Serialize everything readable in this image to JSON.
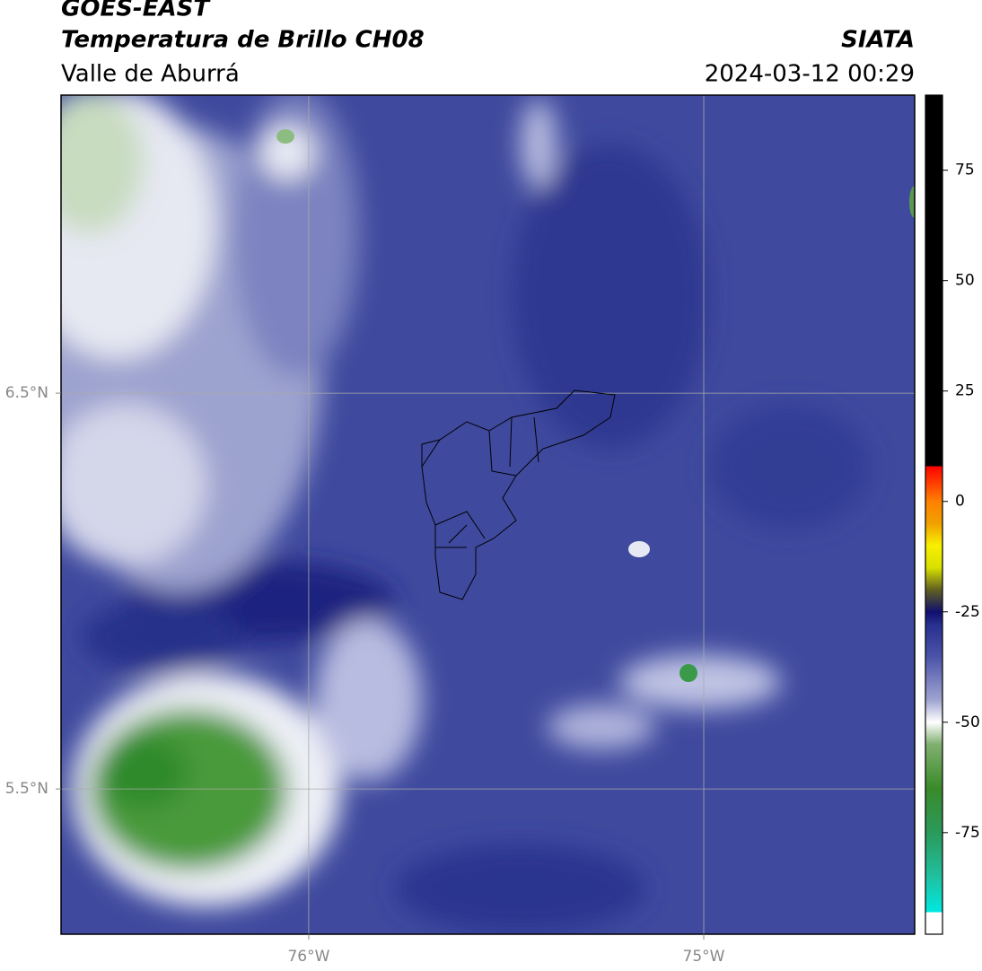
{
  "header": {
    "title": "GOES-EAST",
    "subtitle": "Temperatura de Brillo CH08",
    "region": "Valle de Aburrá",
    "source": "SIATA",
    "datetime": "2024-03-12 00:29"
  },
  "map": {
    "lon_range": [
      -76.627,
      -74.466
    ],
    "lat_range": [
      5.133,
      7.253
    ],
    "lon_ticks": [
      {
        "value": -76,
        "label": "76°W"
      },
      {
        "value": -75,
        "label": "75°W"
      }
    ],
    "lat_ticks": [
      {
        "value": 6.5,
        "label": "6.5°N"
      },
      {
        "value": 5.5,
        "label": "5.5°N"
      }
    ]
  },
  "colorbar": {
    "range": [
      -98,
      92
    ],
    "ticks": [
      75,
      50,
      25,
      0,
      -25,
      -50,
      -75
    ],
    "colormap": [
      [
        -98,
        "#ffffff"
      ],
      [
        -93,
        "#ffffff"
      ],
      [
        -93,
        "#00e8e0"
      ],
      [
        -85,
        "#20c0a0"
      ],
      [
        -75,
        "#2a9a5a"
      ],
      [
        -65,
        "#3a8a2a"
      ],
      [
        -55,
        "#80b070"
      ],
      [
        -50,
        "#ffffff"
      ],
      [
        -45,
        "#a0a4d0"
      ],
      [
        -35,
        "#4a52a8"
      ],
      [
        -28,
        "#283090"
      ],
      [
        -25,
        "#10106e"
      ],
      [
        -20,
        "#606020"
      ],
      [
        -15,
        "#d8e000"
      ],
      [
        -10,
        "#f8f000"
      ],
      [
        -5,
        "#f0a000"
      ],
      [
        0,
        "#ff8000"
      ],
      [
        5,
        "#ff3000"
      ],
      [
        8,
        "#ff0000"
      ],
      [
        8,
        "#000000"
      ],
      [
        92,
        "#000000"
      ]
    ]
  }
}
